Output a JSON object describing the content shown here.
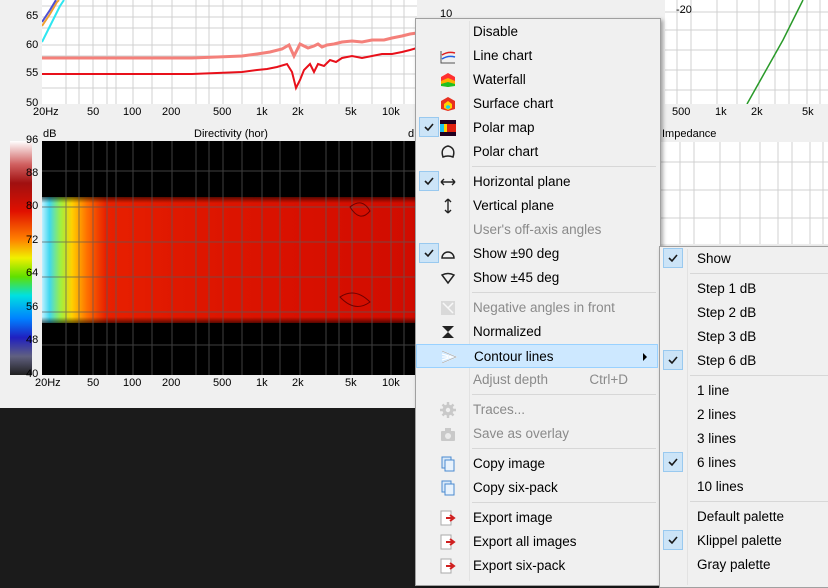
{
  "top_left_chart": {
    "y_ticks": [
      "65",
      "60",
      "55",
      "50"
    ],
    "x_ticks": [
      "20Hz",
      "50",
      "100",
      "200",
      "500",
      "1k",
      "2k",
      "5k",
      "10k"
    ]
  },
  "top_right_chart": {
    "y_ticks": [
      "-20"
    ],
    "x_ticks": [
      "500",
      "1k",
      "2k",
      "5k"
    ]
  },
  "partial_tick_top": "10",
  "partial_title_char": "d",
  "directivity_chart": {
    "title": "Directivity (hor)",
    "unit": "dB",
    "scale_ticks": [
      "96",
      "88",
      "80",
      "72",
      "64",
      "56",
      "48",
      "40"
    ],
    "x_ticks": [
      "20Hz",
      "50",
      "100",
      "200",
      "500",
      "1k",
      "2k",
      "5k",
      "10k"
    ]
  },
  "impedance_chart": {
    "title": "Impedance"
  },
  "context_menu": {
    "items": [
      {
        "label": "Disable",
        "enabled": true,
        "checked": false,
        "icon": "blank"
      },
      {
        "label": "Line chart",
        "enabled": true,
        "checked": false,
        "icon": "line-chart-icon"
      },
      {
        "label": "Waterfall",
        "enabled": true,
        "checked": false,
        "icon": "waterfall-icon"
      },
      {
        "label": "Surface chart",
        "enabled": true,
        "checked": false,
        "icon": "surface-chart-icon"
      },
      {
        "label": "Polar map",
        "enabled": true,
        "checked": true,
        "icon": "polar-map-icon"
      },
      {
        "label": "Polar chart",
        "enabled": true,
        "checked": false,
        "icon": "polar-chart-icon"
      },
      {
        "label": "Horizontal plane",
        "enabled": true,
        "checked": true,
        "icon": "horizontal-arrows-icon"
      },
      {
        "label": "Vertical plane",
        "enabled": true,
        "checked": false,
        "icon": "vertical-arrows-icon"
      },
      {
        "label": "User's off-axis angles",
        "enabled": false,
        "checked": false,
        "icon": "blank"
      },
      {
        "label": "Show ±90 deg",
        "enabled": true,
        "checked": true,
        "icon": "half-circle-icon"
      },
      {
        "label": "Show ±45 deg",
        "enabled": true,
        "checked": false,
        "icon": "wedge-icon"
      },
      {
        "label": "Negative angles in front",
        "enabled": false,
        "checked": false,
        "icon": "flip-icon"
      },
      {
        "label": "Normalized",
        "enabled": true,
        "checked": false,
        "icon": "normalize-icon"
      },
      {
        "label": "Contour lines",
        "enabled": true,
        "checked": false,
        "icon": "contour-icon",
        "submenu": true,
        "highlighted": true
      },
      {
        "label": "Adjust depth",
        "enabled": false,
        "checked": false,
        "icon": "blank",
        "shortcut": "Ctrl+D"
      },
      {
        "label": "Traces...",
        "enabled": false,
        "checked": false,
        "icon": "gear-icon"
      },
      {
        "label": "Save as overlay",
        "enabled": false,
        "checked": false,
        "icon": "camera-icon"
      },
      {
        "label": "Copy image",
        "enabled": true,
        "checked": false,
        "icon": "copy-icon"
      },
      {
        "label": "Copy six-pack",
        "enabled": true,
        "checked": false,
        "icon": "copy-icon"
      },
      {
        "label": "Export image",
        "enabled": true,
        "checked": false,
        "icon": "export-icon"
      },
      {
        "label": "Export all images",
        "enabled": true,
        "checked": false,
        "icon": "export-icon"
      },
      {
        "label": "Export six-pack",
        "enabled": true,
        "checked": false,
        "icon": "export-icon"
      }
    ]
  },
  "contour_submenu": {
    "items": [
      {
        "label": "Show",
        "checked": true
      },
      {
        "label": "Step 1 dB",
        "checked": false
      },
      {
        "label": "Step 2 dB",
        "checked": false
      },
      {
        "label": "Step 3 dB",
        "checked": false
      },
      {
        "label": "Step 6 dB",
        "checked": true
      },
      {
        "label": "1 line",
        "checked": false
      },
      {
        "label": "2 lines",
        "checked": false
      },
      {
        "label": "3 lines",
        "checked": false
      },
      {
        "label": "6 lines",
        "checked": true
      },
      {
        "label": "10 lines",
        "checked": false
      },
      {
        "label": "Default palette",
        "checked": false
      },
      {
        "label": "Klippel palette",
        "checked": true
      },
      {
        "label": "Gray palette",
        "checked": false
      }
    ]
  },
  "colors": {
    "menu_bg": "#f0f0f0",
    "highlight": "#cde8ff",
    "check_bg": "#cce4f7",
    "grid": "#c8c8c8",
    "curve_red": "#e8101a",
    "curve_salmon": "#f4807a"
  }
}
